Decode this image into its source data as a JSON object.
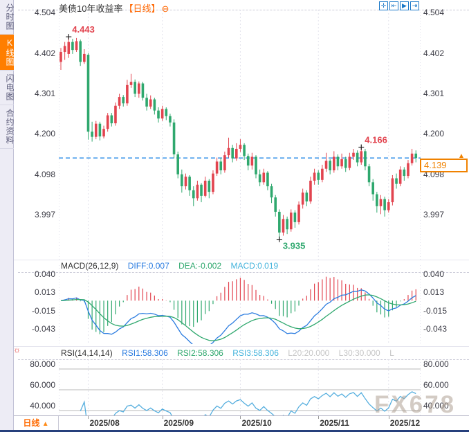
{
  "colors": {
    "up": "#e2444f",
    "down": "#2fa86e",
    "accent_orange": "#ff6a00",
    "price_box_orange": "#f08200",
    "dashed_line": "#1e86e6",
    "diff_line": "#2b7ce0",
    "dea_line": "#2fa86e",
    "macd_value_text": "#45b4dc",
    "rsi_line": "#55aede",
    "muted_gray": "#c6c6c6",
    "grid": "#e2e2ec"
  },
  "sidebar": {
    "items": [
      {
        "label": "分时图",
        "active": false
      },
      {
        "label": "K线图",
        "active": true
      },
      {
        "label": "闪电图",
        "active": false
      },
      {
        "label": "合约资料",
        "active": false
      }
    ]
  },
  "header": {
    "title": "美债10年收益率",
    "period_tag": "【日线】",
    "collapse_icon": "⊖"
  },
  "toolbar": {
    "icons": [
      {
        "name": "crosshair-pan",
        "glyph": "✛"
      },
      {
        "name": "scale-left",
        "glyph": "⇤"
      },
      {
        "name": "play-forward",
        "glyph": "▶"
      },
      {
        "name": "jump-latest",
        "glyph": "⇥"
      }
    ]
  },
  "macd_header": {
    "name": "MACD(26,12,9)",
    "diff": "DIFF:0.007",
    "dea": "DEA:-0.002",
    "macd": "MACD:0.019"
  },
  "rsi_header": {
    "name": "RSI(14,14,14)",
    "rsi1": "RSI1:58.306",
    "rsi2": "RSI2:58.306",
    "rsi3": "RSI3:58.306",
    "l20": "L20:20.000",
    "l30": "L30:30.000",
    "l_trunc": "L"
  },
  "settings_icon": "☼",
  "price_box": {
    "value": "4.139",
    "marker": "▲"
  },
  "x_axis": {
    "period_label": "日线",
    "arrow": "▲"
  },
  "watermark": "FX678",
  "chart_data": {
    "type": "candlestick",
    "title": "美债10年收益率 日线",
    "x_tick_labels": [
      "2025/08",
      "2025/09",
      "2025/10",
      "2025/11",
      "2025/12"
    ],
    "x_tick_indices": [
      7,
      26,
      46,
      66,
      84
    ],
    "main": {
      "ylim": [
        3.884,
        4.511
      ],
      "y_ticks": [
        4.504,
        4.402,
        4.301,
        4.2,
        4.098,
        3.997
      ],
      "current_price": 4.139,
      "annotations": [
        {
          "text": "4.443",
          "value": 4.443,
          "index": 2,
          "place": "above",
          "color": "up"
        },
        {
          "text": "4.166",
          "value": 4.166,
          "index": 77,
          "place": "above",
          "color": "up"
        },
        {
          "text": "3.935",
          "value": 3.935,
          "index": 56,
          "place": "below",
          "color": "down"
        }
      ]
    },
    "candles": [
      [
        4.38,
        4.415,
        4.36,
        4.405
      ],
      [
        4.405,
        4.43,
        4.385,
        4.42
      ],
      [
        4.4,
        4.443,
        4.39,
        4.43
      ],
      [
        4.43,
        4.438,
        4.4,
        4.41
      ],
      [
        4.41,
        4.44,
        4.405,
        4.432
      ],
      [
        4.432,
        4.436,
        4.37,
        4.38
      ],
      [
        4.38,
        4.412,
        4.375,
        4.4
      ],
      [
        4.398,
        4.402,
        4.185,
        4.205
      ],
      [
        4.205,
        4.23,
        4.18,
        4.192
      ],
      [
        4.192,
        4.232,
        4.186,
        4.225
      ],
      [
        4.225,
        4.23,
        4.183,
        4.193
      ],
      [
        4.193,
        4.22,
        4.188,
        4.212
      ],
      [
        4.212,
        4.252,
        4.205,
        4.246
      ],
      [
        4.246,
        4.252,
        4.218,
        4.226
      ],
      [
        4.226,
        4.278,
        4.22,
        4.27
      ],
      [
        4.27,
        4.3,
        4.262,
        4.292
      ],
      [
        4.292,
        4.297,
        4.268,
        4.276
      ],
      [
        4.276,
        4.335,
        4.27,
        4.322
      ],
      [
        4.322,
        4.35,
        4.315,
        4.33
      ],
      [
        4.33,
        4.336,
        4.292,
        4.3
      ],
      [
        4.3,
        4.331,
        4.29,
        4.326
      ],
      [
        4.326,
        4.33,
        4.283,
        4.29
      ],
      [
        4.29,
        4.3,
        4.258,
        4.268
      ],
      [
        4.268,
        4.296,
        4.262,
        4.286
      ],
      [
        4.286,
        4.29,
        4.248,
        4.258
      ],
      [
        4.258,
        4.266,
        4.228,
        4.238
      ],
      [
        4.238,
        4.27,
        4.232,
        4.262
      ],
      [
        4.262,
        4.266,
        4.234,
        4.244
      ],
      [
        4.244,
        4.25,
        4.218,
        4.228
      ],
      [
        4.228,
        4.236,
        4.138,
        4.148
      ],
      [
        4.148,
        4.155,
        4.088,
        4.098
      ],
      [
        4.098,
        4.11,
        4.052,
        4.068
      ],
      [
        4.068,
        4.1,
        4.06,
        4.092
      ],
      [
        4.092,
        4.096,
        4.044,
        4.058
      ],
      [
        4.058,
        4.068,
        4.018,
        4.038
      ],
      [
        4.038,
        4.082,
        4.032,
        4.072
      ],
      [
        4.072,
        4.076,
        4.028,
        4.044
      ],
      [
        4.044,
        4.092,
        4.04,
        4.082
      ],
      [
        4.082,
        4.086,
        4.038,
        4.054
      ],
      [
        4.054,
        4.108,
        4.048,
        4.1
      ],
      [
        4.1,
        4.14,
        4.094,
        4.13
      ],
      [
        4.13,
        4.14,
        4.098,
        4.108
      ],
      [
        4.108,
        4.155,
        4.102,
        4.146
      ],
      [
        4.146,
        4.19,
        4.14,
        4.164
      ],
      [
        4.164,
        4.172,
        4.128,
        4.138
      ],
      [
        4.138,
        4.176,
        4.132,
        4.162
      ],
      [
        4.162,
        4.186,
        4.154,
        4.172
      ],
      [
        4.172,
        4.176,
        4.134,
        4.144
      ],
      [
        4.144,
        4.15,
        4.108,
        4.12
      ],
      [
        4.12,
        4.152,
        4.11,
        4.142
      ],
      [
        4.142,
        4.146,
        4.088,
        4.098
      ],
      [
        4.098,
        4.11,
        4.068,
        4.078
      ],
      [
        4.078,
        4.112,
        4.072,
        4.102
      ],
      [
        4.102,
        4.106,
        4.058,
        4.068
      ],
      [
        4.068,
        4.074,
        4.026,
        4.04
      ],
      [
        4.04,
        4.046,
        3.992,
        4.004
      ],
      [
        4.004,
        4.01,
        3.935,
        3.952
      ],
      [
        3.952,
        3.996,
        3.944,
        3.986
      ],
      [
        3.986,
        3.992,
        3.948,
        3.96
      ],
      [
        3.96,
        4.01,
        3.954,
        4.002
      ],
      [
        4.002,
        4.008,
        3.964,
        3.978
      ],
      [
        3.978,
        4.03,
        3.972,
        4.022
      ],
      [
        4.022,
        4.062,
        4.012,
        4.052
      ],
      [
        4.052,
        4.058,
        4.018,
        4.03
      ],
      [
        4.03,
        4.092,
        4.024,
        4.082
      ],
      [
        4.082,
        4.112,
        4.072,
        4.102
      ],
      [
        4.102,
        4.108,
        4.072,
        4.084
      ],
      [
        4.084,
        4.122,
        4.078,
        4.112
      ],
      [
        4.112,
        4.152,
        4.104,
        4.132
      ],
      [
        4.132,
        4.136,
        4.098,
        4.108
      ],
      [
        4.108,
        4.156,
        4.102,
        4.142
      ],
      [
        4.142,
        4.148,
        4.108,
        4.118
      ],
      [
        4.118,
        4.15,
        4.112,
        4.136
      ],
      [
        4.136,
        4.142,
        4.104,
        4.114
      ],
      [
        4.114,
        4.152,
        4.108,
        4.142
      ],
      [
        4.142,
        4.162,
        4.134,
        4.152
      ],
      [
        4.152,
        4.158,
        4.118,
        4.128
      ],
      [
        4.128,
        4.166,
        4.122,
        4.156
      ],
      [
        4.156,
        4.162,
        4.108,
        4.118
      ],
      [
        4.118,
        4.124,
        4.068,
        4.078
      ],
      [
        4.078,
        4.086,
        4.032,
        4.048
      ],
      [
        4.048,
        4.054,
        4.002,
        4.018
      ],
      [
        4.018,
        4.046,
        3.998,
        4.036
      ],
      [
        4.036,
        4.042,
        3.992,
        4.008
      ],
      [
        4.008,
        4.036,
        4.002,
        4.028
      ],
      [
        4.028,
        4.096,
        4.02,
        4.088
      ],
      [
        4.088,
        4.1,
        4.062,
        4.074
      ],
      [
        4.074,
        4.118,
        4.068,
        4.11
      ],
      [
        4.11,
        4.116,
        4.082,
        4.094
      ],
      [
        4.094,
        4.134,
        4.088,
        4.126
      ],
      [
        4.126,
        4.162,
        4.12,
        4.15
      ],
      [
        4.15,
        4.158,
        4.128,
        4.139
      ]
    ],
    "macd": {
      "params": [
        26,
        12,
        9
      ],
      "ylim": [
        -0.0655,
        0.0535
      ],
      "y_ticks": [
        0.04,
        0.013,
        -0.015,
        -0.043
      ],
      "latest": {
        "diff": 0.007,
        "dea": -0.002,
        "macd": 0.019
      }
    },
    "rsi": {
      "params": [
        14,
        14,
        14
      ],
      "ylim": [
        35.3,
        89.3
      ],
      "y_ticks": [
        80,
        60,
        40
      ],
      "grid_lines": [
        80,
        60,
        40
      ],
      "latest": {
        "rsi1": 58.306,
        "rsi2": 58.306,
        "rsi3": 58.306
      }
    }
  }
}
